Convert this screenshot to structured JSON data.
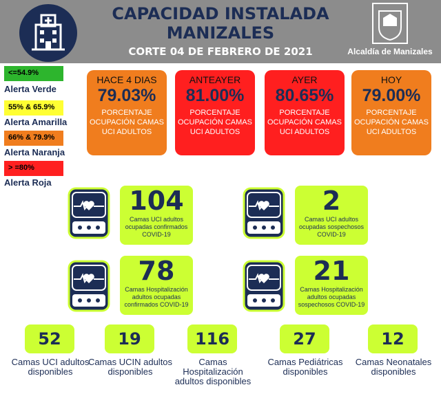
{
  "header": {
    "title_line1": "CAPACIDAD INSTALADA",
    "title_line2": "MANIZALES",
    "subtitle": "CORTE 04 DE FEBRERO DE 2021",
    "org": "Alcaldía de Manizales",
    "icon": "hospital-building-icon"
  },
  "legend": [
    {
      "range": "<=54.9%",
      "label": "Alerta Verde",
      "color": "#2db52d"
    },
    {
      "range": "55% & 65.9%",
      "label": "Alerta Amarilla",
      "color": "#ffff33"
    },
    {
      "range": "66% & 79.9%",
      "label": "Alerta Naranja",
      "color": "#f07d1e"
    },
    {
      "range": "> =80%",
      "label": "Alerta Roja",
      "color": "#ff2020"
    }
  ],
  "days": [
    {
      "title": "HACE 4 DIAS",
      "value": "79.03%",
      "desc": "PORCENTAJE OCUPACIÓN CAMAS UCI ADULTOS",
      "color": "#f07d1e"
    },
    {
      "title": "ANTEAYER",
      "value": "81.00%",
      "desc": "PORCENTAJE OCUPACIÓN CAMAS UCI ADULTOS",
      "color": "#ff1f1f"
    },
    {
      "title": "AYER",
      "value": "80.65%",
      "desc": "PORCENTAJE OCUPACIÓN CAMAS UCI ADULTOS",
      "color": "#ff1f1f"
    },
    {
      "title": "HOY",
      "value": "79.00%",
      "desc": "PORCENTAJE OCUPACIÓN CAMAS UCI ADULTOS",
      "color": "#f07d1e"
    }
  ],
  "stats": [
    {
      "value": "104",
      "desc": "Camas UCI adultos ocupadas confirmados COVID-19"
    },
    {
      "value": "2",
      "desc": "Camas UCI adultos ocupadas sospechosos COVID-19"
    },
    {
      "value": "78",
      "desc": "Camas  Hospitalización adultos ocupadas confirmados COVID-19"
    },
    {
      "value": "21",
      "desc": "Camas  Hospitalización adultos ocupadas sospechosos COVID-19"
    }
  ],
  "available": [
    {
      "value": "52",
      "label": "Camas UCI adultos disponibles"
    },
    {
      "value": "19",
      "label": "Camas UCIN adultos disponibles"
    },
    {
      "value": "116",
      "label": "Camas Hospitalización adultos disponibles"
    },
    {
      "value": "27",
      "label": "Camas Pediátricas disponibles"
    },
    {
      "value": "12",
      "label": "Camas Neonatales disponibles"
    }
  ],
  "colors": {
    "navy": "#1c2d55",
    "lime": "#ccff33"
  },
  "monitor_icon": "heart-monitor-icon"
}
